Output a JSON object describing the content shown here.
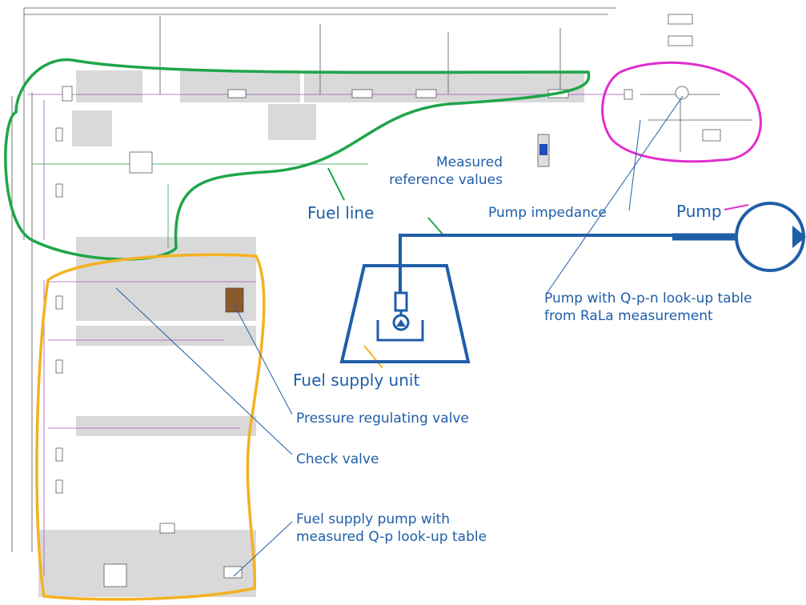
{
  "annotations": [
    {
      "lines": [
        "Measured",
        "reference values"
      ]
    },
    {
      "lines": [
        "Fuel line"
      ]
    },
    {
      "lines": [
        "Pump impedance"
      ]
    },
    {
      "lines": [
        "Pump"
      ]
    },
    {
      "lines": [
        "Pump with Q-p-n look-up table",
        "from RaLa measurement"
      ]
    },
    {
      "lines": [
        "Fuel supply unit"
      ]
    },
    {
      "lines": [
        "Pressure regulating valve"
      ]
    },
    {
      "lines": [
        "Check valve"
      ]
    },
    {
      "lines": [
        "Fuel supply pump with",
        "measured Q-p look-up table"
      ]
    }
  ]
}
